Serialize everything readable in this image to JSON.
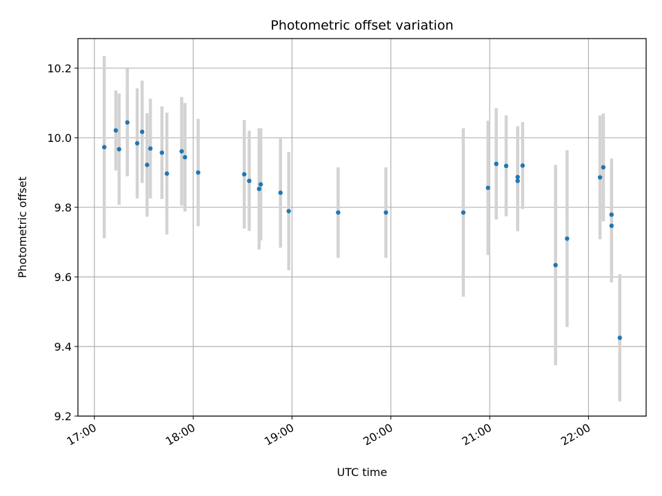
{
  "chart_data": {
    "type": "scatter",
    "title": "Photometric offset variation",
    "xlabel": "UTC time",
    "ylabel": "Photometric offset",
    "x_unit": "time of day (HH:MM, UTC)",
    "xlim": [
      "16:50",
      "22:35"
    ],
    "ylim": [
      9.2,
      10.285
    ],
    "x_ticks": [
      "17:00",
      "18:00",
      "19:00",
      "20:00",
      "21:00",
      "22:00"
    ],
    "y_ticks": [
      9.2,
      9.4,
      9.6,
      9.8,
      10.0,
      10.2
    ],
    "grid": true,
    "marker_color": "#1f77b4",
    "errorbar_color": "#d3d3d3",
    "points": [
      {
        "x": "17:06",
        "y": 9.973,
        "err": 0.262
      },
      {
        "x": "17:13",
        "y": 10.021,
        "err": 0.115
      },
      {
        "x": "17:15",
        "y": 9.967,
        "err": 0.16
      },
      {
        "x": "17:20",
        "y": 10.044,
        "err": 0.155
      },
      {
        "x": "17:26",
        "y": 9.984,
        "err": 0.158
      },
      {
        "x": "17:29",
        "y": 10.017,
        "err": 0.147
      },
      {
        "x": "17:32",
        "y": 9.922,
        "err": 0.149
      },
      {
        "x": "17:34",
        "y": 9.969,
        "err": 0.143
      },
      {
        "x": "17:41",
        "y": 9.957,
        "err": 0.133
      },
      {
        "x": "17:44",
        "y": 9.897,
        "err": 0.175
      },
      {
        "x": "17:53",
        "y": 9.961,
        "err": 0.156
      },
      {
        "x": "17:55",
        "y": 9.944,
        "err": 0.156
      },
      {
        "x": "18:03",
        "y": 9.9,
        "err": 0.154
      },
      {
        "x": "18:31",
        "y": 9.895,
        "err": 0.156
      },
      {
        "x": "18:34",
        "y": 9.876,
        "err": 0.144
      },
      {
        "x": "18:40",
        "y": 9.853,
        "err": 0.174
      },
      {
        "x": "18:41",
        "y": 9.866,
        "err": 0.161
      },
      {
        "x": "18:53",
        "y": 9.842,
        "err": 0.158
      },
      {
        "x": "18:58",
        "y": 9.789,
        "err": 0.17
      },
      {
        "x": "19:28",
        "y": 9.785,
        "err": 0.13
      },
      {
        "x": "19:57",
        "y": 9.785,
        "err": 0.13
      },
      {
        "x": "20:44",
        "y": 9.785,
        "err": 0.242
      },
      {
        "x": "20:59",
        "y": 9.856,
        "err": 0.193
      },
      {
        "x": "21:04",
        "y": 9.925,
        "err": 0.16
      },
      {
        "x": "21:10",
        "y": 9.919,
        "err": 0.145
      },
      {
        "x": "21:17",
        "y": 9.887,
        "err": 0.146
      },
      {
        "x": "21:17",
        "y": 9.876,
        "err": 0.145
      },
      {
        "x": "21:20",
        "y": 9.92,
        "err": 0.125
      },
      {
        "x": "21:40",
        "y": 9.634,
        "err": 0.288
      },
      {
        "x": "21:47",
        "y": 9.71,
        "err": 0.254
      },
      {
        "x": "22:07",
        "y": 9.886,
        "err": 0.178
      },
      {
        "x": "22:09",
        "y": 9.915,
        "err": 0.155
      },
      {
        "x": "22:14",
        "y": 9.779,
        "err": 0.161
      },
      {
        "x": "22:14",
        "y": 9.747,
        "err": 0.163
      },
      {
        "x": "22:19",
        "y": 9.425,
        "err": 0.183
      }
    ]
  }
}
